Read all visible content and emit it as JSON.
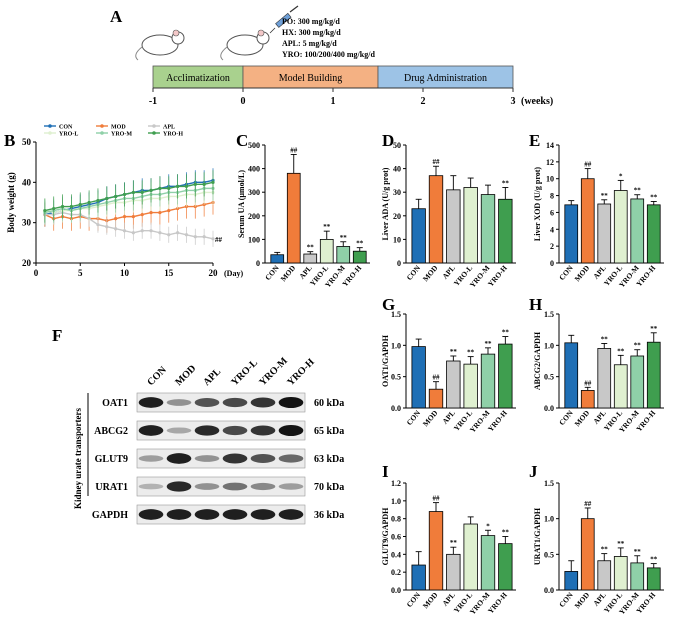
{
  "panels": {
    "A": "A",
    "B": "B",
    "C": "C",
    "D": "D",
    "E": "E",
    "F": "F",
    "G": "G",
    "H": "H",
    "I": "I",
    "J": "J"
  },
  "timeline": {
    "doses": [
      "PO: 300 mg/kg/d",
      "HX: 300 mg/kg/d",
      "APL: 5 mg/kg/d",
      "YRO: 100/200/400 mg/kg/d"
    ],
    "phases": [
      {
        "label": "Acclimatization",
        "start": -1,
        "end": 0,
        "color": "#a9d18e"
      },
      {
        "label": "Model Building",
        "start": 0,
        "end": 1.5,
        "color": "#f4b183"
      },
      {
        "label": "Drug Administration",
        "start": 1.5,
        "end": 3,
        "color": "#9dc3e6"
      }
    ],
    "ticks": [
      "-1",
      "0",
      "1",
      "2",
      "3"
    ],
    "unit": "(weeks)"
  },
  "groups": [
    "CON",
    "MOD",
    "APL",
    "YRO-L",
    "YRO-M",
    "YRO-H"
  ],
  "colors": {
    "CON": "#1f6fb5",
    "MOD": "#f07c3a",
    "APL": "#c8c8c8",
    "YRO-L": "#dff0d0",
    "YRO-M": "#8fd0a8",
    "YRO-H": "#3f9e4f"
  },
  "blot": {
    "header": "Kidney urate transporters",
    "columns": [
      "CON",
      "MOD",
      "APL",
      "YRO-L",
      "YRO-M",
      "YRO-H"
    ],
    "rows": [
      {
        "protein": "OAT1",
        "kda": "60 kDa",
        "intensity": [
          0.95,
          0.4,
          0.7,
          0.75,
          0.85,
          1.0
        ]
      },
      {
        "protein": "ABCG2",
        "kda": "65 kDa",
        "intensity": [
          0.95,
          0.3,
          0.9,
          0.75,
          0.85,
          1.0
        ]
      },
      {
        "protein": "GLUT9",
        "kda": "63 kDa",
        "intensity": [
          0.35,
          0.95,
          0.4,
          0.85,
          0.7,
          0.6
        ]
      },
      {
        "protein": "URAT1",
        "kda": "70 kDa",
        "intensity": [
          0.25,
          0.9,
          0.4,
          0.55,
          0.45,
          0.35
        ]
      },
      {
        "protein": "GAPDH",
        "kda": "36 kDa",
        "intensity": [
          0.95,
          0.95,
          0.95,
          0.95,
          0.95,
          0.95
        ]
      }
    ]
  },
  "chart_data": [
    {
      "panel": "B",
      "type": "line",
      "ylabel": "Body weight (g)",
      "xlabel": "(Day)",
      "xlim": [
        0,
        20
      ],
      "ylim": [
        20,
        50
      ],
      "xticks": [
        "0",
        "5",
        "10",
        "15",
        "20"
      ],
      "yticks": [
        "20",
        "30",
        "40",
        "50"
      ],
      "legend": [
        "CON",
        "MOD",
        "APL",
        "YRO-L",
        "YRO-M",
        "YRO-H"
      ],
      "annotations": [
        "##"
      ],
      "series": [
        {
          "name": "CON",
          "x": [
            1,
            2,
            3,
            4,
            5,
            6,
            7,
            8,
            9,
            10,
            11,
            12,
            13,
            14,
            15,
            16,
            17,
            18,
            19,
            20
          ],
          "y": [
            32,
            32.5,
            33,
            33.5,
            34,
            34.5,
            35,
            36,
            36.5,
            37,
            37.5,
            38,
            38,
            38.5,
            39,
            39,
            39.5,
            40,
            40,
            40.5
          ],
          "err": 3
        },
        {
          "name": "MOD",
          "x": [
            1,
            2,
            3,
            4,
            5,
            6,
            7,
            8,
            9,
            10,
            11,
            12,
            13,
            14,
            15,
            16,
            17,
            18,
            19,
            20
          ],
          "y": [
            32,
            31,
            31.5,
            31,
            31.5,
            31,
            31,
            30.5,
            31,
            31.5,
            31.5,
            32,
            32.5,
            32.5,
            33,
            33.5,
            34,
            34,
            34.5,
            35
          ],
          "err": 3
        },
        {
          "name": "APL",
          "x": [
            1,
            2,
            3,
            4,
            5,
            6,
            7,
            8,
            9,
            10,
            11,
            12,
            13,
            14,
            15,
            16,
            17,
            18,
            19,
            20
          ],
          "y": [
            32,
            32,
            32.5,
            32,
            32,
            31,
            29.5,
            29,
            28.5,
            28,
            27.5,
            28,
            28,
            27.5,
            27,
            27.5,
            27,
            26.5,
            26.5,
            26
          ],
          "err": 2
        },
        {
          "name": "YRO-L",
          "x": [
            1,
            2,
            3,
            4,
            5,
            6,
            7,
            8,
            9,
            10,
            11,
            12,
            13,
            14,
            15,
            16,
            17,
            18,
            19,
            20
          ],
          "y": [
            33,
            32.5,
            33,
            33,
            33.5,
            33.5,
            34,
            34.5,
            35,
            35,
            35.5,
            35.5,
            36,
            36,
            36.5,
            36.5,
            37,
            37,
            37.5,
            37.5
          ],
          "err": 3
        },
        {
          "name": "YRO-M",
          "x": [
            1,
            2,
            3,
            4,
            5,
            6,
            7,
            8,
            9,
            10,
            11,
            12,
            13,
            14,
            15,
            16,
            17,
            18,
            19,
            20
          ],
          "y": [
            32.5,
            33,
            33.5,
            33,
            33.5,
            34,
            34.5,
            35,
            35.5,
            36,
            36,
            36.5,
            37,
            37,
            37.5,
            37.5,
            38,
            38,
            38.5,
            38.5
          ],
          "err": 3
        },
        {
          "name": "YRO-H",
          "x": [
            1,
            2,
            3,
            4,
            5,
            6,
            7,
            8,
            9,
            10,
            11,
            12,
            13,
            14,
            15,
            16,
            17,
            18,
            19,
            20
          ],
          "y": [
            33,
            33.5,
            34,
            34,
            34.5,
            35,
            35.5,
            36,
            36.5,
            37,
            37.5,
            37.5,
            38,
            38.5,
            38.5,
            39,
            39,
            39.5,
            39.5,
            40
          ],
          "err": 3
        }
      ]
    },
    {
      "panel": "C",
      "type": "bar",
      "ylabel": "Serum UA (μmol/L)",
      "categories": [
        "CON",
        "MOD",
        "APL",
        "YRO-L",
        "YRO-M",
        "YRO-H"
      ],
      "values": [
        35,
        380,
        38,
        100,
        70,
        50
      ],
      "errors": [
        10,
        80,
        10,
        35,
        20,
        15
      ],
      "marks": [
        "",
        "##",
        "**",
        "**",
        "**",
        "**"
      ],
      "ylim": [
        0,
        500
      ],
      "yticks": [
        "0",
        "100",
        "200",
        "300",
        "400",
        "500"
      ]
    },
    {
      "panel": "D",
      "type": "bar",
      "ylabel": "Liver ADA (U/g prot)",
      "categories": [
        "CON",
        "MOD",
        "APL",
        "YRO-L",
        "YRO-M",
        "YRO-H"
      ],
      "values": [
        23,
        37,
        31,
        32,
        29,
        27
      ],
      "errors": [
        4,
        4,
        6,
        4,
        4,
        5
      ],
      "marks": [
        "",
        "##",
        "",
        "",
        "",
        "**"
      ],
      "ylim": [
        0,
        50
      ],
      "yticks": [
        "0",
        "10",
        "20",
        "30",
        "40",
        "50"
      ]
    },
    {
      "panel": "E",
      "type": "bar",
      "ylabel": "Liver XOD (U/g prot)",
      "categories": [
        "CON",
        "MOD",
        "APL",
        "YRO-L",
        "YRO-M",
        "YRO-H"
      ],
      "values": [
        6.9,
        10.0,
        7.0,
        8.6,
        7.6,
        6.9
      ],
      "errors": [
        0.5,
        1.2,
        0.5,
        1.2,
        0.5,
        0.4
      ],
      "marks": [
        "",
        "##",
        "**",
        "*",
        "**",
        "**"
      ],
      "ylim": [
        0,
        14
      ],
      "yticks": [
        "0",
        "2",
        "4",
        "6",
        "8",
        "10",
        "12",
        "14"
      ]
    },
    {
      "panel": "G",
      "type": "bar",
      "ylabel": "OAT1/GAPDH",
      "categories": [
        "CON",
        "MOD",
        "APL",
        "YRO-L",
        "YRO-M",
        "YRO-H"
      ],
      "values": [
        0.98,
        0.3,
        0.75,
        0.7,
        0.86,
        1.02
      ],
      "errors": [
        0.12,
        0.12,
        0.08,
        0.12,
        0.1,
        0.12
      ],
      "marks": [
        "",
        "##",
        "**",
        "**",
        "**",
        "**"
      ],
      "ylim": [
        0,
        1.5
      ],
      "yticks": [
        "0.0",
        "0.5",
        "1.0",
        "1.5"
      ]
    },
    {
      "panel": "H",
      "type": "bar",
      "ylabel": "ABCG2/GAPDH",
      "categories": [
        "CON",
        "MOD",
        "APL",
        "YRO-L",
        "YRO-M",
        "YRO-H"
      ],
      "values": [
        1.04,
        0.28,
        0.95,
        0.69,
        0.83,
        1.05
      ],
      "errors": [
        0.12,
        0.05,
        0.08,
        0.15,
        0.1,
        0.15
      ],
      "marks": [
        "",
        "##",
        "**",
        "**",
        "**",
        "**"
      ],
      "ylim": [
        0,
        1.5
      ],
      "yticks": [
        "0.0",
        "0.5",
        "1.0",
        "1.5"
      ]
    },
    {
      "panel": "I",
      "type": "bar",
      "ylabel": "GLUT9/GAPDH",
      "categories": [
        "CON",
        "MOD",
        "APL",
        "YRO-L",
        "YRO-M",
        "YRO-H"
      ],
      "values": [
        0.28,
        0.88,
        0.4,
        0.74,
        0.61,
        0.52
      ],
      "errors": [
        0.15,
        0.1,
        0.08,
        0.08,
        0.06,
        0.08
      ],
      "marks": [
        "",
        "##",
        "**",
        "",
        "*",
        "**"
      ],
      "ylim": [
        0,
        1.2
      ],
      "yticks": [
        "0.0",
        "0.2",
        "0.4",
        "0.6",
        "0.8",
        "1.0",
        "1.2"
      ]
    },
    {
      "panel": "J",
      "type": "bar",
      "ylabel": "URAT1/GAPDH",
      "categories": [
        "CON",
        "MOD",
        "APL",
        "YRO-L",
        "YRO-M",
        "YRO-H"
      ],
      "values": [
        0.26,
        1.0,
        0.41,
        0.47,
        0.38,
        0.31
      ],
      "errors": [
        0.15,
        0.15,
        0.1,
        0.12,
        0.1,
        0.06
      ],
      "marks": [
        "",
        "##",
        "**",
        "**",
        "**",
        "**"
      ],
      "ylim": [
        0,
        1.5
      ],
      "yticks": [
        "0.0",
        "0.5",
        "1.0",
        "1.5"
      ]
    }
  ]
}
